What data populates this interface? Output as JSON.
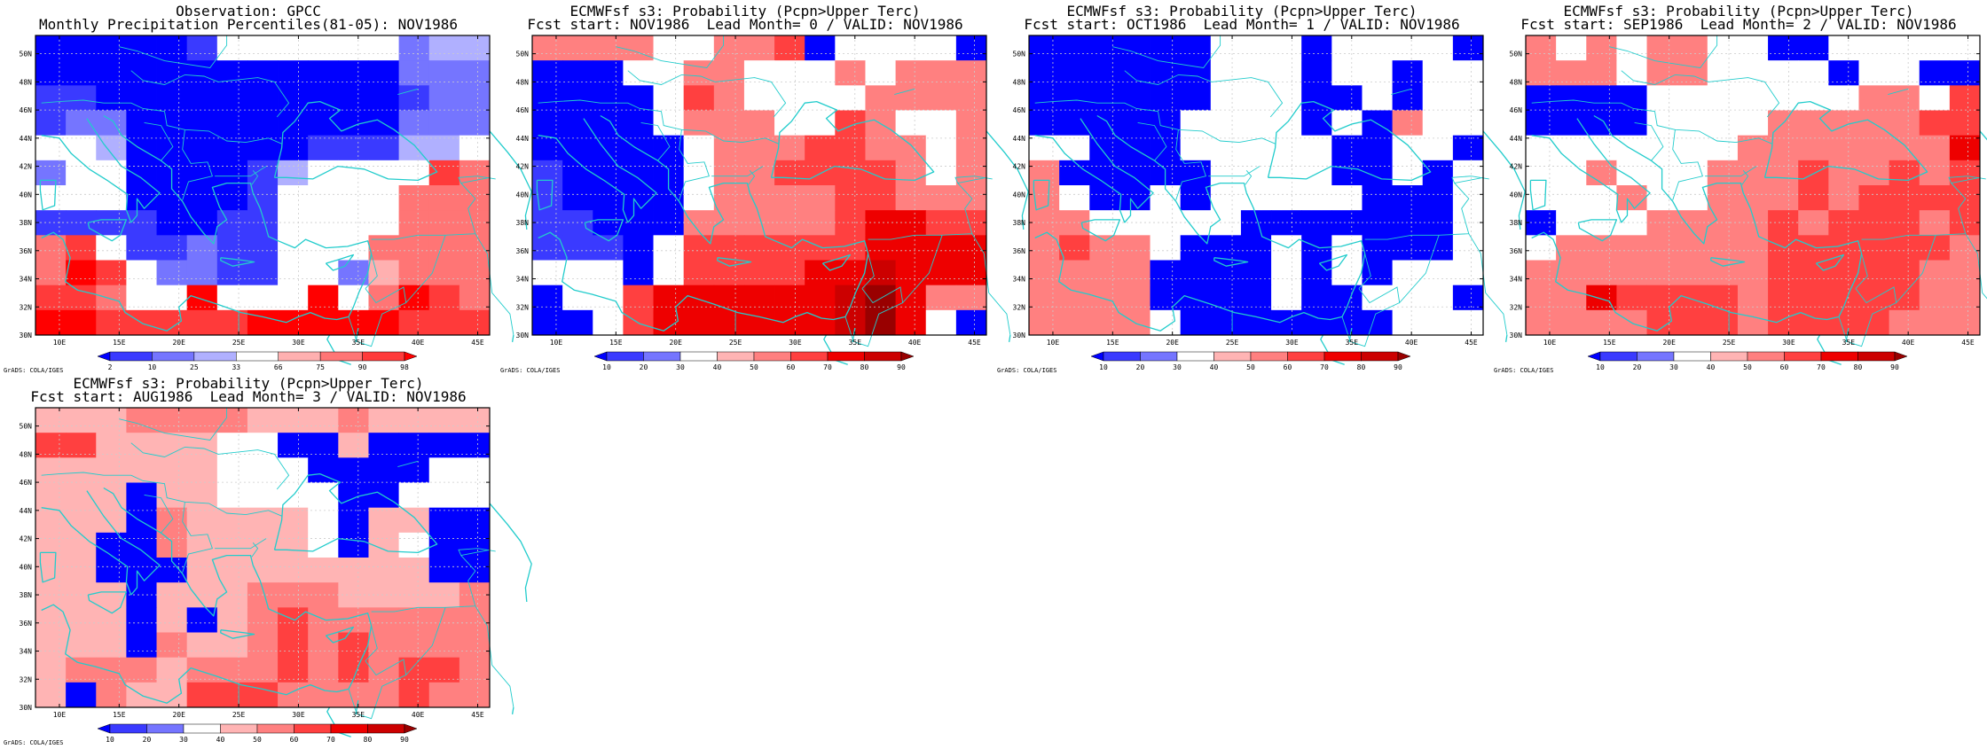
{
  "credit": "GrADS: COLA/IGES",
  "palette": {
    "grid_line": "#cccccc",
    "coast": "#22cccc",
    "frame": "#000000"
  },
  "axes": {
    "lon_range": [
      8,
      46
    ],
    "lat_range": [
      30,
      51.3
    ],
    "lon_ticks": [
      "10E",
      "15E",
      "20E",
      "25E",
      "30E",
      "35E",
      "40E",
      "45E"
    ],
    "lon_tick_values": [
      10,
      15,
      20,
      25,
      30,
      35,
      40,
      45
    ],
    "lat_ticks": [
      "30N",
      "32N",
      "34N",
      "36N",
      "38N",
      "40N",
      "42N",
      "44N",
      "46N",
      "48N",
      "50N"
    ],
    "lat_tick_values": [
      30,
      32,
      34,
      36,
      38,
      40,
      42,
      44,
      46,
      48,
      50
    ],
    "grid": "dotted"
  },
  "colorbars": {
    "percentile": {
      "labels": [
        "2",
        "10",
        "25",
        "33",
        "66",
        "75",
        "90",
        "98"
      ],
      "colors": [
        "#0000ff",
        "#3a3aff",
        "#7575ff",
        "#b0b0ff",
        "#ffffff",
        "#ffb0b0",
        "#ff7575",
        "#ff3a3a",
        "#ff0000"
      ]
    },
    "probability": {
      "labels": [
        "10",
        "20",
        "30",
        "40",
        "50",
        "60",
        "70",
        "80",
        "90"
      ],
      "colors": [
        "#0000ff",
        "#3a3aff",
        "#7575ff",
        "#ffffff",
        "#ffb4b4",
        "#ff8080",
        "#ff4040",
        "#ee0000",
        "#cc0000",
        "#990000"
      ]
    }
  },
  "panels": [
    {
      "title_line1": "Observation: GPCC",
      "title_line2": "Monthly Precipitation Percentiles(81-05): NOV1986",
      "colorbar": "percentile",
      "grid_rows_note": "rows from north (index 0) to south; values are class index 0-8 (0=<2, 4=33-66 neutral, 8=>98)",
      "cells": [
        [
          0,
          0,
          0,
          0,
          0,
          1,
          4,
          4,
          4,
          4,
          4,
          4,
          2,
          3,
          3
        ],
        [
          0,
          0,
          0,
          0,
          0,
          0,
          0,
          0,
          0,
          0,
          0,
          0,
          2,
          2,
          2
        ],
        [
          1,
          1,
          0,
          0,
          0,
          0,
          0,
          0,
          0,
          0,
          0,
          0,
          1,
          2,
          2
        ],
        [
          1,
          2,
          2,
          0,
          0,
          0,
          0,
          0,
          0,
          0,
          0,
          0,
          2,
          2,
          2
        ],
        [
          4,
          4,
          3,
          0,
          0,
          0,
          0,
          0,
          0,
          1,
          1,
          1,
          3,
          3,
          4
        ],
        [
          2,
          4,
          4,
          0,
          0,
          0,
          0,
          1,
          3,
          4,
          4,
          4,
          4,
          7,
          6
        ],
        [
          4,
          4,
          4,
          0,
          0,
          0,
          0,
          1,
          4,
          4,
          4,
          4,
          6,
          6,
          6
        ],
        [
          1,
          1,
          1,
          1,
          0,
          0,
          1,
          1,
          4,
          4,
          4,
          4,
          6,
          6,
          6
        ],
        [
          6,
          7,
          4,
          1,
          1,
          2,
          1,
          1,
          4,
          4,
          4,
          6,
          6,
          6,
          6
        ],
        [
          6,
          8,
          7,
          4,
          2,
          2,
          1,
          1,
          4,
          4,
          2,
          5,
          6,
          6,
          6
        ],
        [
          7,
          7,
          6,
          4,
          4,
          8,
          4,
          4,
          4,
          8,
          4,
          6,
          8,
          7,
          6
        ],
        [
          8,
          8,
          7,
          7,
          7,
          7,
          7,
          8,
          8,
          8,
          8,
          8,
          7,
          7,
          7
        ]
      ]
    },
    {
      "title_line1": "ECMWFsf s3: Probability (Pcpn>Upper Terc)",
      "title_line2": "Fcst start: NOV1986  Lead Month= 0 / VALID: NOV1986",
      "colorbar": "probability",
      "cells": [
        [
          5,
          5,
          5,
          5,
          3,
          3,
          5,
          5,
          6,
          0,
          3,
          3,
          3,
          3,
          0
        ],
        [
          0,
          0,
          0,
          3,
          3,
          5,
          5,
          3,
          3,
          3,
          5,
          3,
          5,
          5,
          5
        ],
        [
          0,
          0,
          0,
          0,
          3,
          6,
          5,
          3,
          3,
          3,
          3,
          5,
          5,
          5,
          5
        ],
        [
          0,
          0,
          0,
          0,
          3,
          5,
          5,
          5,
          3,
          3,
          6,
          5,
          3,
          3,
          5
        ],
        [
          0,
          0,
          0,
          0,
          0,
          3,
          5,
          5,
          5,
          6,
          6,
          5,
          5,
          3,
          5
        ],
        [
          1,
          0,
          0,
          0,
          0,
          3,
          5,
          5,
          6,
          6,
          6,
          6,
          5,
          3,
          5
        ],
        [
          1,
          0,
          0,
          0,
          0,
          3,
          5,
          5,
          5,
          5,
          6,
          6,
          5,
          5,
          5
        ],
        [
          1,
          1,
          0,
          0,
          0,
          5,
          5,
          5,
          5,
          5,
          6,
          7,
          7,
          6,
          6
        ],
        [
          1,
          1,
          1,
          0,
          3,
          6,
          6,
          6,
          6,
          6,
          6,
          7,
          7,
          7,
          7
        ],
        [
          3,
          3,
          3,
          0,
          3,
          6,
          6,
          6,
          6,
          7,
          7,
          8,
          7,
          7,
          7
        ],
        [
          0,
          3,
          3,
          6,
          7,
          7,
          7,
          7,
          7,
          7,
          8,
          9,
          7,
          5,
          5
        ],
        [
          0,
          0,
          3,
          6,
          7,
          7,
          7,
          7,
          7,
          7,
          8,
          9,
          7,
          3,
          0
        ]
      ]
    },
    {
      "title_line1": "ECMWFsf s3: Probability (Pcpn>Upper Terc)",
      "title_line2": "Fcst start: OCT1986  Lead Month= 1 / VALID: NOV1986",
      "colorbar": "probability",
      "cells": [
        [
          0,
          0,
          0,
          0,
          0,
          0,
          3,
          3,
          3,
          0,
          3,
          3,
          3,
          3,
          0
        ],
        [
          0,
          0,
          0,
          0,
          0,
          0,
          3,
          3,
          3,
          0,
          3,
          3,
          0,
          3,
          3
        ],
        [
          0,
          0,
          0,
          0,
          0,
          0,
          3,
          3,
          3,
          0,
          0,
          3,
          0,
          3,
          3
        ],
        [
          0,
          0,
          0,
          0,
          0,
          3,
          3,
          3,
          3,
          0,
          3,
          0,
          5,
          3,
          3
        ],
        [
          3,
          3,
          0,
          0,
          0,
          3,
          3,
          3,
          3,
          3,
          0,
          0,
          3,
          3,
          0
        ],
        [
          5,
          0,
          0,
          0,
          0,
          0,
          3,
          3,
          3,
          3,
          0,
          0,
          3,
          0,
          3
        ],
        [
          5,
          3,
          0,
          0,
          3,
          0,
          3,
          3,
          3,
          3,
          3,
          0,
          0,
          0,
          3
        ],
        [
          5,
          5,
          3,
          3,
          3,
          3,
          3,
          0,
          0,
          0,
          0,
          0,
          0,
          0,
          3
        ],
        [
          5,
          6,
          5,
          5,
          3,
          0,
          0,
          0,
          3,
          0,
          3,
          0,
          0,
          0,
          3
        ],
        [
          5,
          5,
          5,
          5,
          0,
          0,
          0,
          0,
          3,
          0,
          3,
          0,
          3,
          3,
          3
        ],
        [
          5,
          5,
          5,
          5,
          0,
          0,
          0,
          0,
          3,
          0,
          0,
          3,
          3,
          3,
          0
        ],
        [
          5,
          5,
          5,
          5,
          3,
          0,
          0,
          0,
          0,
          0,
          0,
          0,
          3,
          3,
          3
        ]
      ]
    },
    {
      "title_line1": "ECMWFsf s3: Probability (Pcpn>Upper Terc)",
      "title_line2": "Fcst start: SEP1986  Lead Month= 2 / VALID: NOV1986",
      "colorbar": "probability",
      "cells": [
        [
          5,
          3,
          5,
          3,
          5,
          5,
          3,
          3,
          0,
          0,
          3,
          3,
          3,
          3,
          3
        ],
        [
          5,
          5,
          5,
          3,
          5,
          5,
          3,
          3,
          3,
          3,
          0,
          3,
          3,
          0,
          0
        ],
        [
          0,
          0,
          0,
          0,
          3,
          3,
          3,
          3,
          3,
          3,
          3,
          5,
          5,
          3,
          6
        ],
        [
          0,
          0,
          0,
          0,
          3,
          3,
          3,
          3,
          5,
          5,
          5,
          5,
          5,
          6,
          6
        ],
        [
          3,
          3,
          3,
          3,
          3,
          3,
          3,
          5,
          5,
          5,
          5,
          5,
          5,
          5,
          7
        ],
        [
          3,
          3,
          5,
          3,
          3,
          3,
          5,
          5,
          5,
          6,
          5,
          5,
          6,
          5,
          6
        ],
        [
          3,
          3,
          3,
          5,
          3,
          3,
          5,
          5,
          5,
          6,
          5,
          6,
          6,
          6,
          6
        ],
        [
          0,
          3,
          3,
          3,
          5,
          5,
          5,
          5,
          6,
          5,
          6,
          6,
          6,
          5,
          6
        ],
        [
          3,
          5,
          5,
          5,
          5,
          5,
          5,
          5,
          6,
          6,
          6,
          6,
          6,
          6,
          5
        ],
        [
          5,
          5,
          5,
          5,
          5,
          5,
          5,
          5,
          6,
          6,
          6,
          6,
          6,
          5,
          5
        ],
        [
          5,
          5,
          7,
          6,
          6,
          6,
          6,
          5,
          6,
          6,
          6,
          6,
          6,
          5,
          5
        ],
        [
          5,
          5,
          5,
          5,
          6,
          6,
          6,
          5,
          6,
          6,
          6,
          6,
          5,
          5,
          5
        ]
      ]
    },
    {
      "title_line1": "ECMWFsf s3: Probability (Pcpn>Upper Terc)",
      "title_line2": "Fcst start: AUG1986  Lead Month= 3 / VALID: NOV1986",
      "colorbar": "probability",
      "cells": [
        [
          4,
          4,
          4,
          5,
          5,
          5,
          5,
          4,
          4,
          4,
          5,
          4,
          4,
          4,
          4
        ],
        [
          6,
          6,
          4,
          4,
          4,
          4,
          3,
          3,
          0,
          0,
          4,
          0,
          0,
          0,
          0
        ],
        [
          4,
          4,
          4,
          4,
          4,
          4,
          3,
          3,
          3,
          0,
          0,
          0,
          0,
          3,
          3
        ],
        [
          4,
          4,
          4,
          0,
          4,
          4,
          3,
          3,
          3,
          3,
          0,
          0,
          3,
          3,
          3
        ],
        [
          4,
          4,
          4,
          0,
          5,
          4,
          4,
          4,
          4,
          3,
          0,
          4,
          4,
          0,
          0
        ],
        [
          4,
          4,
          0,
          0,
          5,
          4,
          4,
          4,
          4,
          3,
          0,
          4,
          3,
          0,
          0
        ],
        [
          4,
          4,
          0,
          0,
          0,
          4,
          4,
          4,
          4,
          4,
          4,
          4,
          4,
          0,
          0
        ],
        [
          4,
          4,
          4,
          0,
          4,
          4,
          4,
          5,
          5,
          5,
          4,
          4,
          4,
          4,
          5
        ],
        [
          4,
          4,
          4,
          0,
          4,
          0,
          4,
          5,
          6,
          5,
          5,
          5,
          5,
          5,
          5
        ],
        [
          4,
          4,
          4,
          0,
          5,
          4,
          4,
          5,
          6,
          5,
          6,
          5,
          5,
          5,
          5
        ],
        [
          4,
          5,
          5,
          5,
          4,
          5,
          5,
          5,
          6,
          5,
          6,
          5,
          6,
          6,
          5
        ],
        [
          4,
          0,
          5,
          4,
          4,
          6,
          6,
          6,
          5,
          5,
          5,
          5,
          6,
          5,
          5
        ]
      ]
    }
  ]
}
